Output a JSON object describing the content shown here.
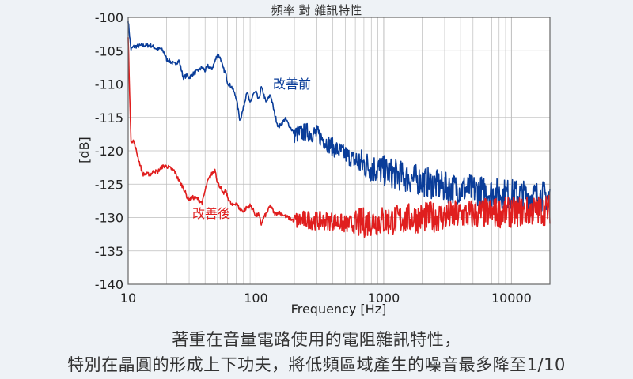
{
  "chart_data": {
    "type": "line",
    "title": "頻率 對 雜訊特性",
    "xlabel": "Frequency [Hz]",
    "ylabel": "[dB]",
    "xscale": "log",
    "xlim": [
      10,
      20000
    ],
    "ylim": [
      -140,
      -100
    ],
    "x_ticks": [
      "10",
      "100",
      "1000",
      "10000"
    ],
    "y_ticks": [
      "-100",
      "-105",
      "-110",
      "-115",
      "-120",
      "-125",
      "-130",
      "-135",
      "-140"
    ],
    "grid": true,
    "series": [
      {
        "name": "改善前",
        "color": "#0a3d99",
        "x": [
          10,
          10.5,
          11,
          13,
          15,
          16,
          17,
          18,
          19,
          20,
          23,
          25,
          27,
          29,
          30,
          32,
          35,
          38,
          40,
          42,
          45,
          48,
          50,
          53,
          55,
          58,
          60,
          65,
          70,
          75,
          80,
          85,
          90,
          95,
          100,
          105,
          110,
          115,
          120,
          130,
          140,
          150,
          170,
          200,
          250,
          300,
          400,
          500,
          600,
          800,
          1000,
          1500,
          2000,
          3000,
          5000,
          7000,
          10000,
          15000,
          20000
        ],
        "y": [
          -100.5,
          -104.8,
          -104.4,
          -104.2,
          -104.2,
          -104.5,
          -104.8,
          -104.7,
          -105.2,
          -106.3,
          -107,
          -106.5,
          -109,
          -108.7,
          -109,
          -108.5,
          -108,
          -107.5,
          -108,
          -107.3,
          -107.8,
          -106.5,
          -105.5,
          -106.2,
          -107.5,
          -108.5,
          -109.8,
          -110.5,
          -112,
          -115.5,
          -113.5,
          -111,
          -113,
          -111.5,
          -111.2,
          -112.5,
          -110.5,
          -111.5,
          -112.8,
          -111.5,
          -114.5,
          -116.5,
          -115.2,
          -117.5,
          -117.2,
          -117.5,
          -119.5,
          -120.5,
          -121.5,
          -122.5,
          -123,
          -124,
          -124.5,
          -125.5,
          -125.8,
          -126.3,
          -126.5,
          -126.8,
          -126.8
        ]
      },
      {
        "name": "改善後",
        "color": "#e01e1e",
        "x": [
          10,
          10.5,
          11,
          13,
          15,
          16,
          17,
          18,
          19,
          20,
          23,
          25,
          27,
          29,
          30,
          32,
          35,
          38,
          40,
          42,
          45,
          48,
          50,
          53,
          55,
          58,
          60,
          65,
          70,
          75,
          80,
          85,
          90,
          95,
          100,
          105,
          110,
          115,
          120,
          130,
          140,
          150,
          170,
          200,
          250,
          300,
          400,
          500,
          600,
          800,
          1000,
          1500,
          2000,
          3000,
          5000,
          7000,
          10000,
          15000,
          20000
        ],
        "y": [
          -103,
          -118.5,
          -118.5,
          -123.5,
          -123.5,
          -123,
          -123.2,
          -122.5,
          -122.3,
          -122.3,
          -123,
          -124.5,
          -125.5,
          -127,
          -127.3,
          -127,
          -127.2,
          -127.8,
          -126,
          -124.5,
          -123.5,
          -122.8,
          -124.8,
          -125.5,
          -126.5,
          -126,
          -127,
          -128.2,
          -127.8,
          -128.8,
          -129,
          -128.5,
          -128.2,
          -128.8,
          -129.8,
          -129.5,
          -131,
          -130,
          -129.5,
          -128.2,
          -129.5,
          -129.2,
          -129.8,
          -130.5,
          -130.3,
          -130.5,
          -130.5,
          -131,
          -131,
          -130.5,
          -130.5,
          -130.2,
          -130,
          -129.8,
          -129.5,
          -129.3,
          -129.2,
          -129,
          -128.8
        ]
      }
    ],
    "annotations": [
      {
        "text": "改善前",
        "color": "#0a3d99",
        "series": 0
      },
      {
        "text": "改善後",
        "color": "#e01e1e",
        "series": 1
      }
    ]
  },
  "caption": {
    "line1": "著重在音量電路使用的電阻雜訊特性，",
    "line2": "特別在晶圓的形成上下功夫，將低頻區域產生的噪音最多降至1/10"
  }
}
